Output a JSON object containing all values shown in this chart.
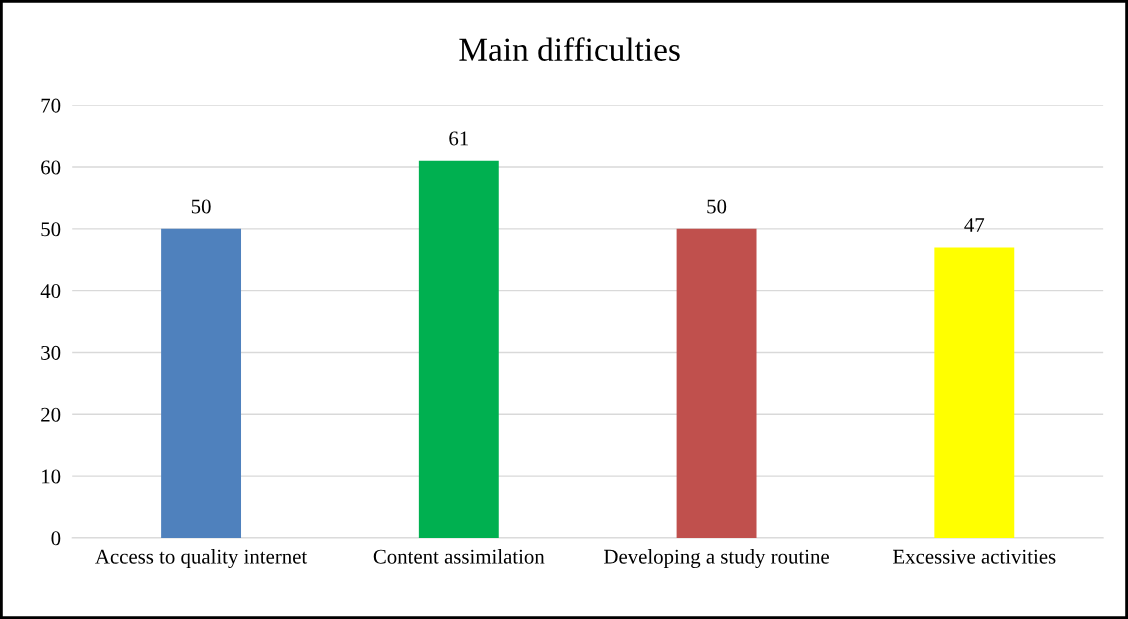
{
  "chart_data": {
    "type": "bar",
    "title": "Main difficulties",
    "categories": [
      "Access to quality internet",
      "Content assimilation",
      "Developing a study routine",
      "Excessive activities"
    ],
    "values": [
      50,
      61,
      50,
      47
    ],
    "colors": [
      "#4f81bd",
      "#00b050",
      "#c0504d",
      "#ffff00"
    ],
    "ylim": [
      0,
      70
    ],
    "yticks": [
      0,
      10,
      20,
      30,
      40,
      50,
      60,
      70
    ],
    "grid": "y",
    "data_labels": true
  }
}
